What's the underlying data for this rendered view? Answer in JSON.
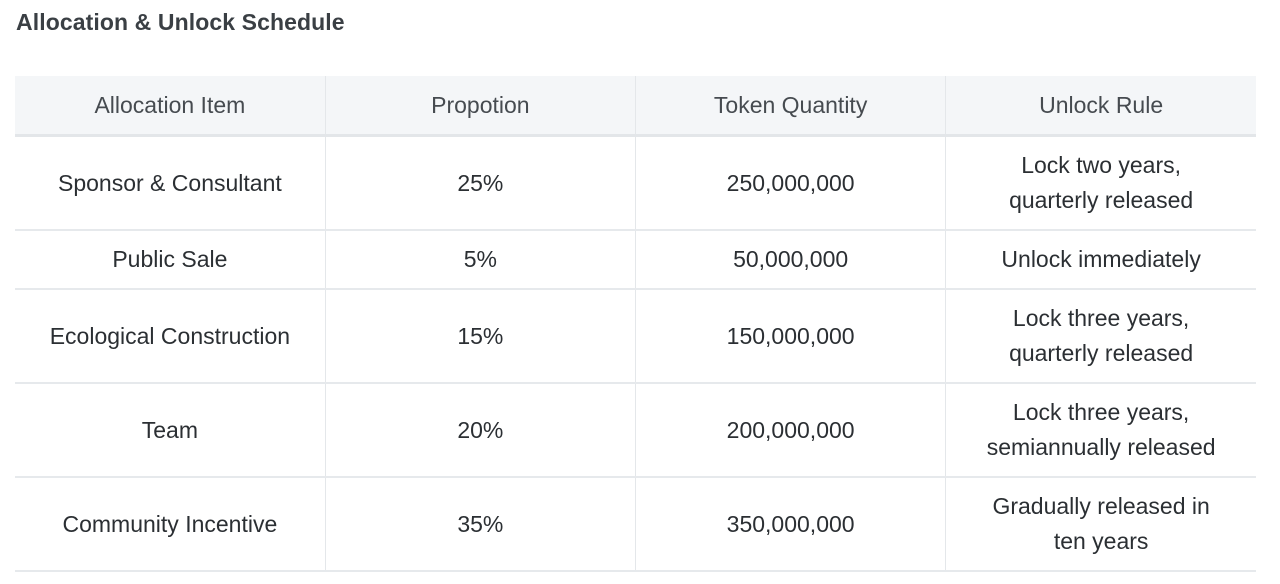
{
  "title": "Allocation & Unlock Schedule",
  "table": {
    "headers": [
      "Allocation Item",
      "Propotion",
      "Token Quantity",
      "Unlock Rule"
    ],
    "rows": [
      {
        "item": "Sponsor & Consultant",
        "proportion": "25%",
        "quantity": "250,000,000",
        "rule_line1": "Lock two years,",
        "rule_line2": "quarterly released"
      },
      {
        "item": "Public Sale",
        "proportion": "5%",
        "quantity": "50,000,000",
        "rule_line1": "Unlock immediately",
        "rule_line2": ""
      },
      {
        "item": "Ecological Construction",
        "proportion": "15%",
        "quantity": "150,000,000",
        "rule_line1": "Lock three years,",
        "rule_line2": "quarterly released"
      },
      {
        "item": "Team",
        "proportion": "20%",
        "quantity": "200,000,000",
        "rule_line1": "Lock three years,",
        "rule_line2": "semiannually released"
      },
      {
        "item": "Community Incentive",
        "proportion": "35%",
        "quantity": "350,000,000",
        "rule_line1": "Gradually released in",
        "rule_line2": "ten years"
      }
    ]
  }
}
